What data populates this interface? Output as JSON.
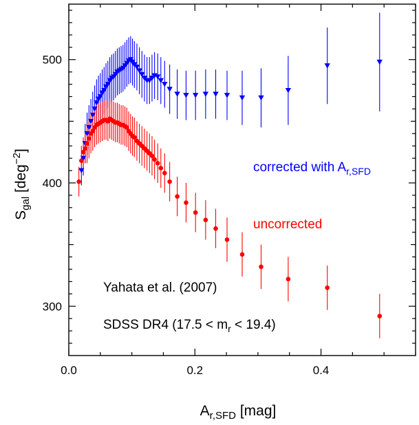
{
  "chart_data": {
    "type": "scatter",
    "title": "",
    "xlabel": {
      "main": "A",
      "sub": "r,SFD",
      "unit": " [mag]"
    },
    "ylabel": {
      "main": "S",
      "sub": "gal",
      "unit_pre": " [deg",
      "sup": "−2",
      "unit_post": "]"
    },
    "xlim": [
      0.0,
      0.55
    ],
    "ylim": [
      260,
      545
    ],
    "grid": false,
    "xticks": [
      0.0,
      0.2,
      0.4
    ],
    "xtick_labels": [
      "0.0",
      "0.2",
      "0.4"
    ],
    "yticks": [
      300,
      400,
      500
    ],
    "ytick_labels": [
      "300",
      "400",
      "500"
    ],
    "series": [
      {
        "name": "corrected with A",
        "name_sub": "r,SFD",
        "marker": "triangle-down",
        "color": "#0000ff",
        "x": [
          0.02,
          0.023,
          0.026,
          0.029,
          0.032,
          0.035,
          0.038,
          0.041,
          0.044,
          0.047,
          0.05,
          0.053,
          0.056,
          0.059,
          0.062,
          0.065,
          0.068,
          0.071,
          0.074,
          0.077,
          0.08,
          0.083,
          0.086,
          0.089,
          0.092,
          0.095,
          0.098,
          0.101,
          0.104,
          0.108,
          0.112,
          0.116,
          0.12,
          0.124,
          0.128,
          0.132,
          0.136,
          0.141,
          0.146,
          0.152,
          0.16,
          0.172,
          0.186,
          0.201,
          0.217,
          0.233,
          0.251,
          0.275,
          0.305,
          0.348,
          0.41,
          0.493
        ],
        "y": [
          410,
          420,
          432,
          440,
          445,
          450,
          455,
          460,
          465,
          468,
          470,
          473,
          475,
          478,
          480,
          483,
          485,
          486,
          488,
          490,
          491,
          492,
          493,
          495,
          497,
          499,
          500,
          498,
          496,
          494,
          491,
          488,
          485,
          483,
          483,
          485,
          487,
          486,
          483,
          480,
          476,
          472,
          471,
          471,
          472,
          472,
          471,
          469,
          469,
          475,
          495,
          498
        ],
        "err": [
          12,
          14,
          16,
          17,
          18,
          18,
          19,
          19,
          19,
          19,
          19,
          19,
          19,
          19,
          19,
          19,
          19,
          19,
          19,
          19,
          19,
          19,
          19,
          19,
          19,
          19,
          19,
          19,
          19,
          19,
          19,
          19,
          19,
          19,
          19,
          19,
          19,
          19,
          19,
          19,
          20,
          20,
          20,
          20,
          20,
          20,
          20,
          22,
          24,
          28,
          31,
          40
        ]
      },
      {
        "name": "uncorrected",
        "marker": "circle",
        "color": "#ff0000",
        "x": [
          0.016,
          0.02,
          0.023,
          0.026,
          0.029,
          0.032,
          0.035,
          0.038,
          0.041,
          0.044,
          0.047,
          0.05,
          0.053,
          0.056,
          0.059,
          0.062,
          0.065,
          0.068,
          0.071,
          0.074,
          0.077,
          0.08,
          0.083,
          0.086,
          0.089,
          0.092,
          0.095,
          0.098,
          0.101,
          0.104,
          0.108,
          0.112,
          0.116,
          0.12,
          0.124,
          0.128,
          0.132,
          0.136,
          0.141,
          0.146,
          0.152,
          0.16,
          0.172,
          0.186,
          0.201,
          0.217,
          0.233,
          0.251,
          0.275,
          0.305,
          0.348,
          0.41,
          0.493
        ],
        "y": [
          401,
          418,
          425,
          428,
          432,
          436,
          440,
          442,
          445,
          447,
          448,
          449,
          450,
          451,
          451,
          450,
          452,
          451,
          450,
          449,
          449,
          448,
          447,
          447,
          446,
          445,
          442,
          440,
          438,
          437,
          434,
          432,
          430,
          428,
          426,
          424,
          422,
          419,
          416,
          412,
          408,
          401,
          389,
          384,
          376,
          370,
          363,
          354,
          342,
          332,
          322,
          315,
          292
        ]
      }
    ],
    "annotations": {
      "reference": "Yahata et al. (2007)",
      "sample_pre": "SDSS DR4 (17.5 < m",
      "sample_sub": "r",
      "sample_post": " < 19.4)"
    }
  }
}
